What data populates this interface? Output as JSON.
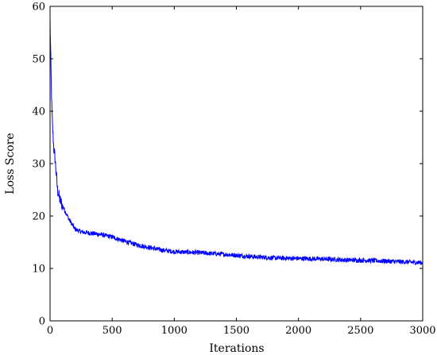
{
  "chart_data": {
    "type": "line",
    "title": "",
    "xlabel": "Iterations",
    "ylabel": "Loss Score",
    "xlim": [
      0,
      3000
    ],
    "ylim": [
      0,
      60
    ],
    "x_ticks": [
      0,
      500,
      1000,
      1500,
      2000,
      2500,
      3000
    ],
    "y_ticks": [
      0,
      10,
      20,
      30,
      40,
      50,
      60
    ],
    "grid": false,
    "legend": "none",
    "series": [
      {
        "color": "#0000ff",
        "x": [
          0,
          5,
          10,
          15,
          20,
          30,
          40,
          50,
          60,
          70,
          80,
          100,
          120,
          150,
          180,
          200,
          250,
          300,
          400,
          500,
          600,
          700,
          800,
          900,
          1000,
          1200,
          1400,
          1600,
          1800,
          2000,
          2200,
          2400,
          2600,
          2800,
          3000
        ],
        "y": [
          58,
          51,
          45,
          40,
          37,
          33,
          31,
          28,
          25,
          24,
          23,
          22,
          21,
          19.5,
          18.3,
          17.5,
          17.0,
          16.8,
          16.5,
          16.0,
          15.2,
          14.5,
          14.0,
          13.5,
          13.2,
          13.0,
          12.7,
          12.3,
          12.0,
          11.9,
          11.8,
          11.6,
          11.5,
          11.3,
          11.1
        ]
      }
    ]
  }
}
